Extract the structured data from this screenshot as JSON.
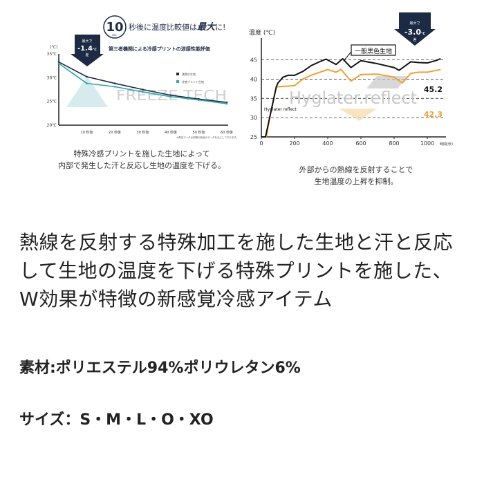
{
  "left_panel": {
    "headline_number": "10",
    "headline_unit": "sec.",
    "headline_text_a": "秒後に温度比較値は",
    "headline_text_bold": "最大",
    "headline_text_b": "に!",
    "subtitle": "第三者機関による冷感プリントの涼感性能評価",
    "arrow_top": "最大で",
    "arrow_value": "-1.4",
    "arrow_unit": "℃",
    "arrow_bottom": "差",
    "watermark": "FREEZE TECH",
    "badge": "FREEZE TECH",
    "footnote": "※測定データは初期の製品のデータを元にしております。",
    "caption_line1": "特殊冷感プリントを施した生地によって",
    "caption_line2": "内部で発生した汗と反応し生地の温度を下げる。"
  },
  "right_panel": {
    "arrow_top": "最大で",
    "arrow_value": "-3.0",
    "arrow_unit": "℃",
    "arrow_bottom": "差",
    "watermark": "Hyglater.reflect",
    "logo": "Hyglater reflect",
    "value_black": "45.2",
    "value_orange": "42.3",
    "caption_line1": "外部からの熱線を反射することで",
    "caption_line2": "生地温度の上昇を抑制。"
  },
  "description": {
    "line1": "熱線を反射する特殊加工を施した生地と汗と反応",
    "line2": "して生地の温度を下げる特殊プリントを施した、",
    "line3": "W効果が特徴の新感覚冷感アイテム"
  },
  "material": "素材:ポリエステル94%ポリウレタン6%",
  "sizes": "サイズ：S・M・L・O・XO",
  "chart_data": [
    {
      "type": "line",
      "ylabel": "(℃)",
      "x": [
        0,
        10,
        20,
        30,
        40,
        50,
        60
      ],
      "xtick_labels": [
        "10 秒後",
        "20 秒後",
        "30 秒後",
        "40 秒後",
        "50 秒後",
        "60 秒後"
      ],
      "ytick_labels": [
        "35℃",
        "30℃",
        "25℃",
        "20℃"
      ],
      "ylim": [
        20,
        35
      ],
      "xlim": [
        0,
        60
      ],
      "grid": false,
      "legend_position": "right",
      "series": [
        {
          "name": "通常の生地",
          "color": "#1d2a44",
          "values": [
            33.3,
            30.2,
            28.8,
            27.5,
            26.3,
            25.5,
            24.8
          ]
        },
        {
          "name": "冷感プリント生地",
          "color": "#2aa5ac",
          "values": [
            33.0,
            28.8,
            28.1,
            27.0,
            26.0,
            25.3,
            24.5
          ]
        }
      ]
    },
    {
      "type": "line",
      "ylabel": "温度 (℃)",
      "xlabel": "時間(秒)",
      "xticks": [
        0,
        200,
        400,
        600,
        800,
        1000
      ],
      "yticks": [
        25,
        30,
        35,
        40,
        45
      ],
      "xlim": [
        0,
        1100
      ],
      "ylim": [
        25,
        48
      ],
      "grid": "horizontal dashed",
      "series": [
        {
          "name": "一般黒色生地",
          "color": "#111111",
          "x": [
            0,
            25,
            50,
            90,
            100,
            130,
            160,
            200,
            250,
            300,
            350,
            390,
            450,
            490,
            540,
            600,
            700,
            800,
            830,
            900,
            950,
            1000,
            1050,
            1080
          ],
          "values": [
            25,
            25,
            30,
            38,
            39,
            40.5,
            41,
            41,
            42,
            43.5,
            44.5,
            45.2,
            43.8,
            45.3,
            43,
            44.8,
            44,
            43,
            42.3,
            44.5,
            44.3,
            44.2,
            44.8,
            45.3
          ]
        },
        {
          "color": "#f0a030",
          "x": [
            0,
            30,
            50,
            90,
            200,
            250,
            300,
            400,
            450,
            480,
            540,
            600,
            700,
            800,
            850,
            900,
            950,
            1000,
            1080
          ],
          "values": [
            25,
            25,
            30,
            38,
            38.3,
            40,
            41,
            42.5,
            41.8,
            42.5,
            39.5,
            41.2,
            41.3,
            40.5,
            39,
            41.5,
            41.8,
            41.8,
            42.5
          ]
        }
      ]
    }
  ]
}
